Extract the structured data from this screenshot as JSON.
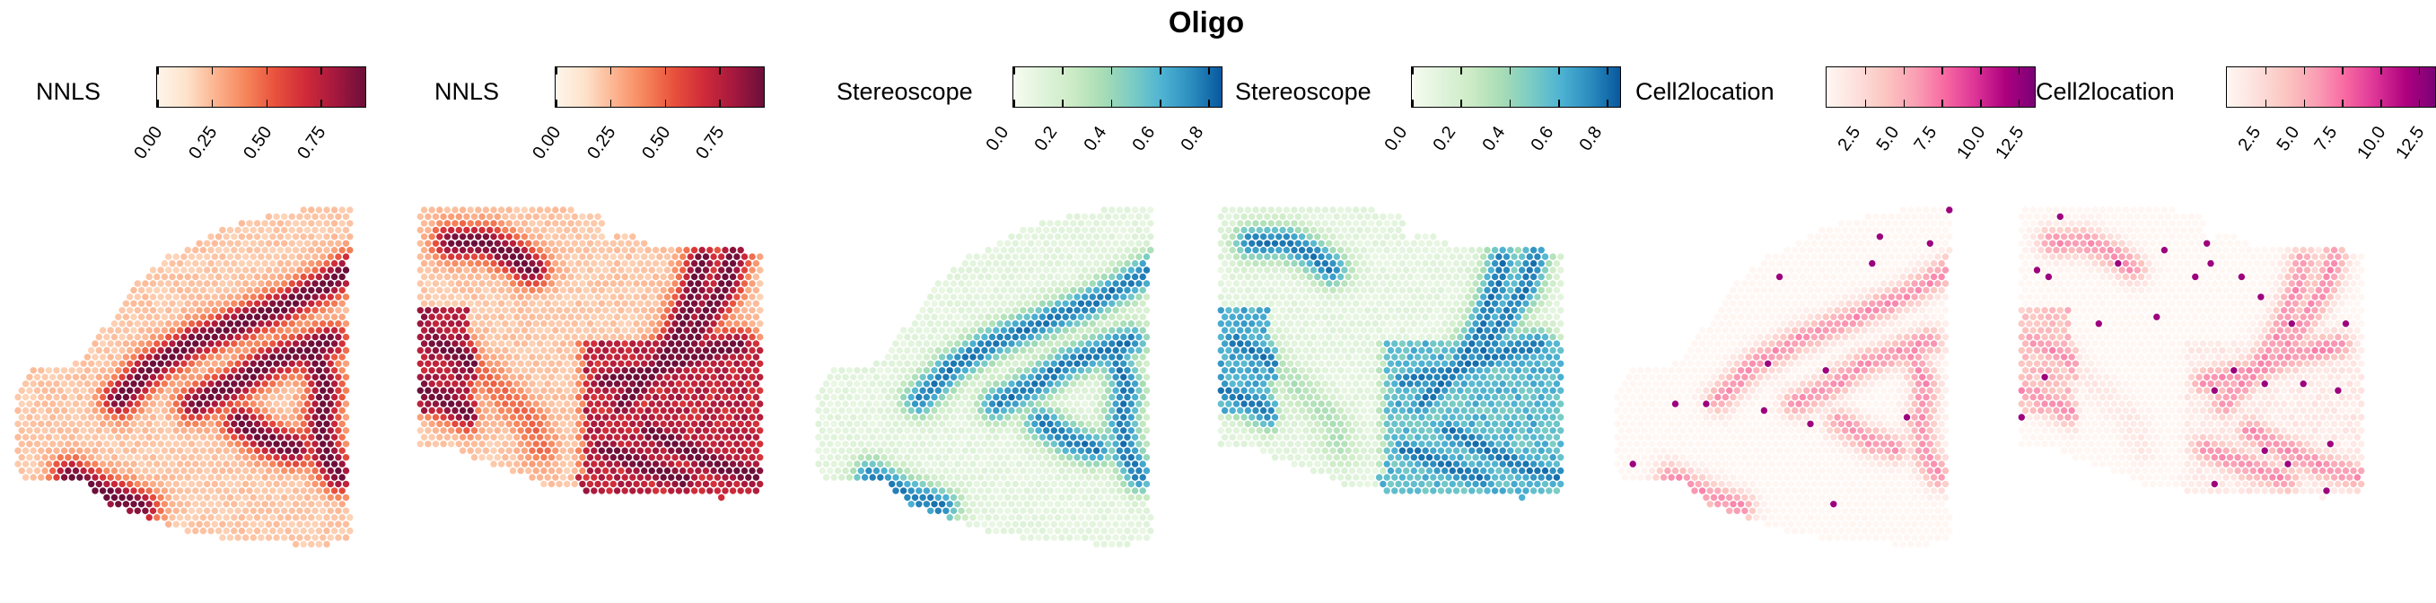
{
  "title": "Oligo",
  "palettes": {
    "reds": [
      "#fff5eb",
      "#fde2ca",
      "#fcb28e",
      "#f6845a",
      "#e8503c",
      "#cf2a39",
      "#a5183e",
      "#6b0f3a"
    ],
    "blues": [
      "#f7fcf0",
      "#e0f3db",
      "#ccebc5",
      "#a8ddb5",
      "#7bccc4",
      "#4eb3d3",
      "#2b8cbe",
      "#08589e"
    ],
    "pinks": [
      "#fff7f3",
      "#fde0dd",
      "#fcc5c0",
      "#fa9fb5",
      "#f768a1",
      "#dd3497",
      "#ae017e",
      "#7a0177"
    ]
  },
  "chart_data": [
    {
      "type": "heatmap",
      "title": "",
      "legend_title": "NNLS",
      "palette": "reds",
      "color_range": [
        0,
        0.95
      ],
      "ticks": [
        0,
        0.25,
        0.5,
        0.75
      ],
      "tick_labels": [
        "0.00",
        "0.25",
        "0.50",
        "0.75"
      ],
      "section": "section-A"
    },
    {
      "type": "heatmap",
      "title": "",
      "legend_title": "NNLS",
      "palette": "reds",
      "color_range": [
        0,
        0.95
      ],
      "ticks": [
        0,
        0.25,
        0.5,
        0.75
      ],
      "tick_labels": [
        "0.00",
        "0.25",
        "0.50",
        "0.75"
      ],
      "section": "section-B"
    },
    {
      "type": "heatmap",
      "title": "",
      "legend_title": "Stereoscope",
      "palette": "blues",
      "color_range": [
        0,
        0.85
      ],
      "ticks": [
        0,
        0.2,
        0.4,
        0.6,
        0.8
      ],
      "tick_labels": [
        "0.0",
        "0.2",
        "0.4",
        "0.6",
        "0.8"
      ],
      "section": "section-A"
    },
    {
      "type": "heatmap",
      "title": "",
      "legend_title": "Stereoscope",
      "palette": "blues",
      "color_range": [
        0,
        0.85
      ],
      "ticks": [
        0,
        0.2,
        0.4,
        0.6,
        0.8
      ],
      "tick_labels": [
        "0.0",
        "0.2",
        "0.4",
        "0.6",
        "0.8"
      ],
      "section": "section-B"
    },
    {
      "type": "heatmap",
      "title": "",
      "legend_title": "Cell2location",
      "palette": "pinks",
      "color_range": [
        0,
        13.5
      ],
      "ticks": [
        2.5,
        5,
        7.5,
        10,
        12.5
      ],
      "tick_labels": [
        "2.5",
        "5.0",
        "7.5",
        "10.0",
        "12.5"
      ],
      "section": "section-A"
    },
    {
      "type": "heatmap",
      "title": "",
      "legend_title": "Cell2location",
      "palette": "pinks",
      "color_range": [
        0,
        13.5
      ],
      "ticks": [
        2.5,
        5,
        7.5,
        10,
        12.5
      ],
      "tick_labels": [
        "2.5",
        "5.0",
        "7.5",
        "10.0",
        "12.5"
      ],
      "section": "section-B"
    }
  ]
}
